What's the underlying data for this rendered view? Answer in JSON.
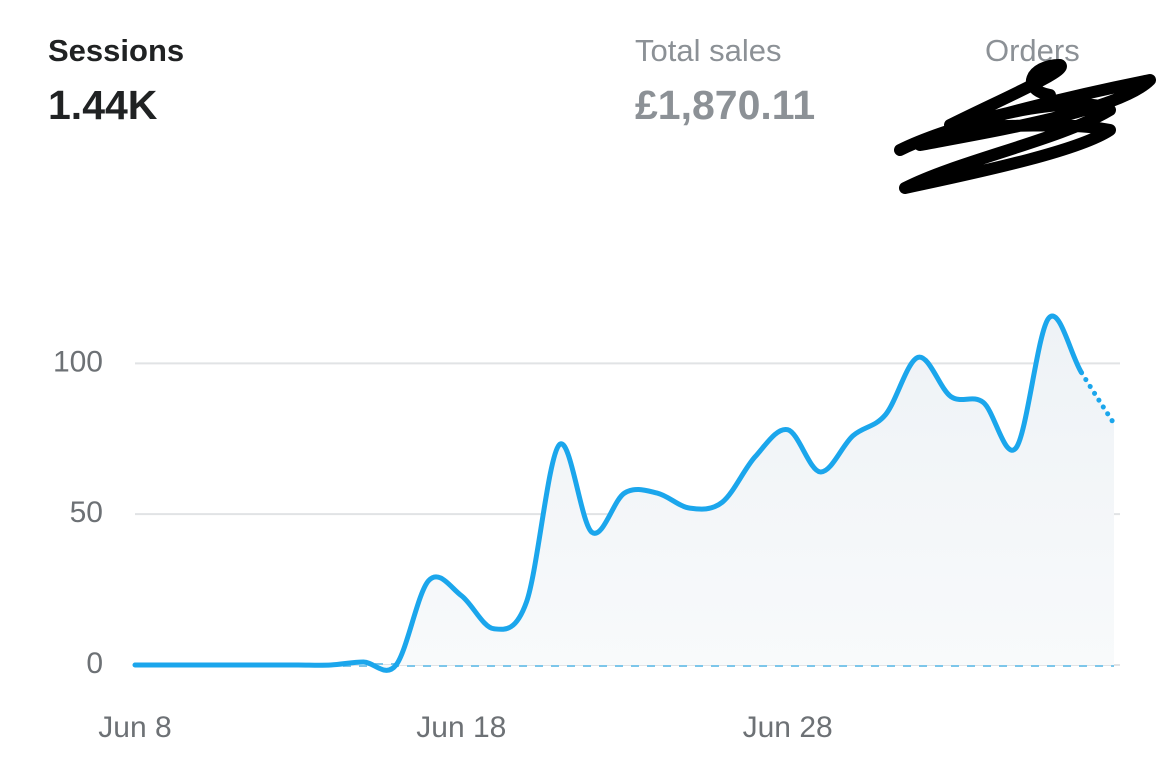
{
  "metrics": [
    {
      "label": "Sessions",
      "value": "1.44K"
    },
    {
      "label": "Total sales",
      "value": "£1,870.11"
    },
    {
      "label": "Orders"
    }
  ],
  "chart_data": {
    "type": "line",
    "categories": [
      "Jun 8",
      null,
      null,
      null,
      null,
      null,
      null,
      null,
      null,
      null,
      "Jun 18",
      null,
      null,
      null,
      null,
      null,
      null,
      null,
      null,
      null,
      "Jun 28",
      null,
      null,
      null,
      null,
      null,
      null,
      null,
      null,
      null,
      null
    ],
    "series": [
      {
        "color": "#1ba6ec",
        "values": [
          0,
          0,
          0,
          0,
          0,
          0,
          0,
          1,
          0,
          28,
          23,
          12,
          21,
          73,
          44,
          57,
          57,
          52,
          54,
          69,
          78,
          64,
          76,
          83,
          102,
          89,
          87,
          72,
          115,
          97,
          80
        ],
        "incomplete_last_point": true
      },
      {
        "color": "#7cc6ea",
        "dashed": true,
        "values": [
          0,
          0,
          0,
          0,
          0,
          0,
          0,
          0,
          0,
          0,
          0,
          0,
          0,
          0,
          0,
          0,
          0,
          0,
          0,
          0,
          0,
          0,
          0,
          0,
          0,
          0,
          0,
          0,
          0,
          0,
          0
        ]
      }
    ],
    "ylim": [
      0,
      120
    ],
    "yticks": [
      0,
      50,
      100
    ],
    "grid": true
  }
}
